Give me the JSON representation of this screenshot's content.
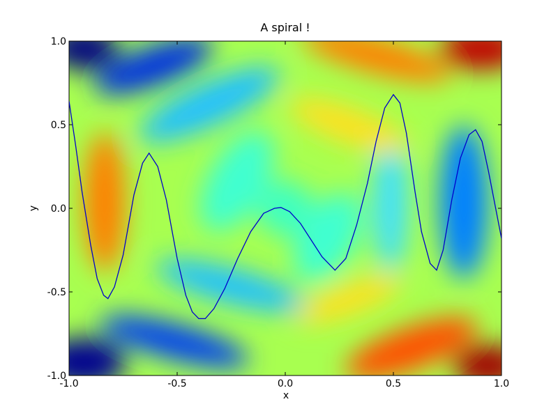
{
  "chart_data": {
    "type": "line",
    "title": "A spiral !",
    "xlabel": "x",
    "ylabel": "y",
    "xlim": [
      -1,
      1
    ],
    "ylim": [
      -1,
      1
    ],
    "xticks": [
      {
        "value": -1,
        "label": "-1.0"
      },
      -0.5,
      {
        "value": 0,
        "label": "0.0"
      },
      0.5,
      {
        "value": 1,
        "label": "1.0"
      }
    ],
    "yticks": [
      {
        "value": -1,
        "label": "-1.0"
      },
      -0.5,
      {
        "value": 0,
        "label": "0.0"
      },
      0.5,
      {
        "value": 1,
        "label": "1.0"
      }
    ],
    "series": [
      {
        "color": "#0000cc",
        "x": [
          -1,
          -0.97,
          -0.94,
          -0.9,
          -0.87,
          -0.84,
          -0.82,
          -0.79,
          -0.75,
          -0.7,
          -0.66,
          -0.63,
          -0.59,
          -0.55,
          -0.5,
          -0.46,
          -0.43,
          -0.4,
          -0.37,
          -0.33,
          -0.28,
          -0.22,
          -0.16,
          -0.1,
          -0.05,
          -0.02,
          0.02,
          0.07,
          0.12,
          0.17,
          0.23,
          0.28,
          0.33,
          0.38,
          0.42,
          0.46,
          0.5,
          0.53,
          0.56,
          0.6,
          0.63,
          0.67,
          0.7,
          0.73,
          0.77,
          0.81,
          0.85,
          0.88,
          0.91,
          0.94,
          0.97,
          1
        ],
        "values": [
          0.64,
          0.38,
          0.1,
          -0.22,
          -0.42,
          -0.52,
          -0.54,
          -0.47,
          -0.28,
          0.08,
          0.27,
          0.33,
          0.25,
          0.05,
          -0.3,
          -0.52,
          -0.62,
          -0.66,
          -0.66,
          -0.6,
          -0.48,
          -0.3,
          -0.14,
          -0.03,
          0.0,
          0.005,
          -0.02,
          -0.09,
          -0.19,
          -0.29,
          -0.37,
          -0.3,
          -0.1,
          0.15,
          0.4,
          0.6,
          0.68,
          0.63,
          0.45,
          0.1,
          -0.14,
          -0.33,
          -0.37,
          -0.25,
          0.05,
          0.3,
          0.44,
          0.47,
          0.4,
          0.22,
          0.02,
          -0.18
        ]
      }
    ]
  }
}
